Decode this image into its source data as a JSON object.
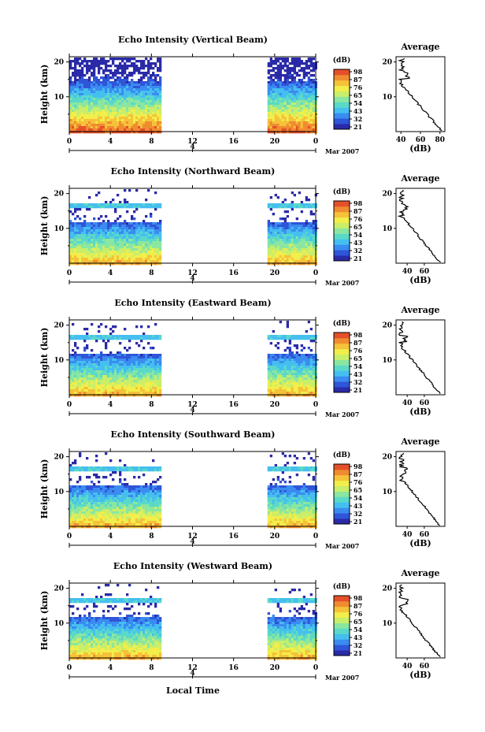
{
  "colors": {
    "scale": [
      "#2a2aa8",
      "#2f55d8",
      "#3a8cf0",
      "#45bff0",
      "#5ad9c8",
      "#8ae6a0",
      "#c8ee6a",
      "#f2ee4a",
      "#f6c23a",
      "#f08c30",
      "#e5502a"
    ]
  },
  "footer": {
    "xlabel": "Local Time"
  },
  "chart_data": [
    {
      "type": "heatmap",
      "title": "Echo Intensity (Vertical Beam)",
      "ylabel": "Height (km)",
      "xticks": [
        "0",
        "4",
        "8",
        "12",
        "16",
        "20",
        "0"
      ],
      "yticks": [
        "20",
        "10"
      ],
      "date_marker": "4",
      "date_label": "Mar 2007",
      "colorbar": {
        "label": "(dB)",
        "ticks": [
          "98",
          "87",
          "76",
          "65",
          "54",
          "43",
          "32",
          "21"
        ]
      },
      "profile": {
        "title": "Average",
        "xlabel": "(dB)",
        "xticks": [
          "40",
          "60",
          "80"
        ],
        "yticks": [
          "20",
          "10"
        ]
      }
    },
    {
      "type": "heatmap",
      "title": "Echo Intensity (Northward Beam)",
      "ylabel": "Height (km)",
      "xticks": [
        "0",
        "4",
        "8",
        "12",
        "16",
        "20",
        "0"
      ],
      "yticks": [
        "20",
        "10"
      ],
      "date_marker": "4",
      "date_label": "Mar 2007",
      "colorbar": {
        "label": "(dB)",
        "ticks": [
          "98",
          "87",
          "76",
          "65",
          "54",
          "43",
          "32",
          "21"
        ]
      },
      "profile": {
        "title": "Average",
        "xlabel": "(dB)",
        "xticks": [
          "40",
          "60"
        ],
        "yticks": [
          "20",
          "10"
        ]
      }
    },
    {
      "type": "heatmap",
      "title": "Echo Intensity (Eastward Beam)",
      "ylabel": "Height (km)",
      "xticks": [
        "0",
        "4",
        "8",
        "12",
        "16",
        "20",
        "0"
      ],
      "yticks": [
        "20",
        "10"
      ],
      "date_marker": "4",
      "date_label": "Mar 2007",
      "colorbar": {
        "label": "(dB)",
        "ticks": [
          "98",
          "87",
          "76",
          "65",
          "54",
          "43",
          "32",
          "21"
        ]
      },
      "profile": {
        "title": "Average",
        "xlabel": "(dB)",
        "xticks": [
          "40",
          "60"
        ],
        "yticks": [
          "20",
          "10"
        ]
      }
    },
    {
      "type": "heatmap",
      "title": "Echo Intensity (Southward Beam)",
      "ylabel": "Height (km)",
      "xticks": [
        "0",
        "4",
        "8",
        "12",
        "16",
        "20",
        "0"
      ],
      "yticks": [
        "20",
        "10"
      ],
      "date_marker": "4",
      "date_label": "Mar 2007",
      "colorbar": {
        "label": "(dB)",
        "ticks": [
          "98",
          "87",
          "76",
          "65",
          "54",
          "43",
          "32",
          "21"
        ]
      },
      "profile": {
        "title": "Average",
        "xlabel": "(dB)",
        "xticks": [
          "40",
          "60"
        ],
        "yticks": [
          "20",
          "10"
        ]
      }
    },
    {
      "type": "heatmap",
      "title": "Echo Intensity (Westward Beam)",
      "ylabel": "Height (km)",
      "xticks": [
        "0",
        "4",
        "8",
        "12",
        "16",
        "20",
        "0"
      ],
      "yticks": [
        "20",
        "10"
      ],
      "date_marker": "4",
      "date_label": "Mar 2007",
      "colorbar": {
        "label": "(dB)",
        "ticks": [
          "98",
          "87",
          "76",
          "65",
          "54",
          "43",
          "32",
          "21"
        ]
      },
      "profile": {
        "title": "Average",
        "xlabel": "(dB)",
        "xticks": [
          "40",
          "60"
        ],
        "yticks": [
          "20",
          "10"
        ]
      }
    }
  ]
}
